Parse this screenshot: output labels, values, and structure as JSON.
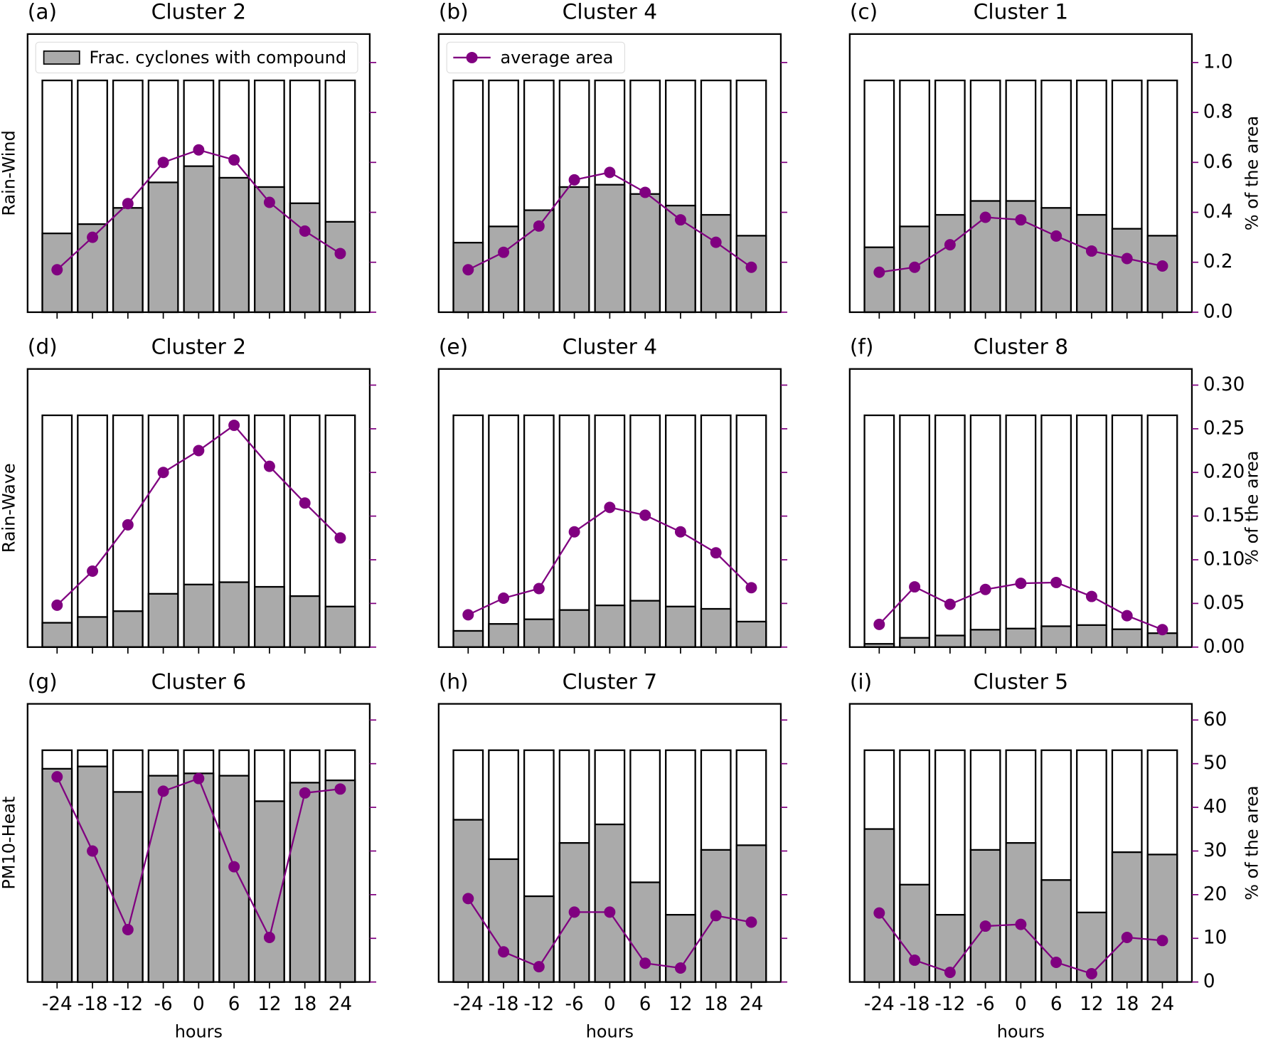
{
  "chart_data": [
    {
      "type": "bar_line",
      "panel_label": "(a)",
      "title": "Cluster 2",
      "row_label": "Rain-Wind",
      "x": [
        -24,
        -18,
        -12,
        -6,
        0,
        6,
        12,
        18,
        24
      ],
      "xlim": [
        -29,
        29
      ],
      "xticks": [
        -24,
        -18,
        -12,
        -6,
        0,
        6,
        12,
        18,
        24
      ],
      "show_xtick_labels": false,
      "ylim": [
        0,
        1.2
      ],
      "y2lim": [
        0,
        1.114
      ],
      "y2ticks": [
        {
          "value": 0,
          "label": "0.0"
        },
        0.2,
        0.4,
        0.6,
        0.8,
        {
          "value": 1,
          "label": "1.0"
        }
      ],
      "show_y2tick_labels": false,
      "legend": "upper left",
      "series": [
        {
          "name": "Frac. cyclones with compound",
          "color": "#aaaaaa",
          "total": 1,
          "bar_width": 5,
          "values": [
            0.34,
            0.38,
            0.45,
            0.56,
            0.63,
            0.58,
            0.54,
            0.47,
            0.39
          ]
        },
        {
          "color": "#800080",
          "axis": "y2",
          "values": [
            0.17,
            0.3,
            0.435,
            0.6,
            0.65,
            0.61,
            0.44,
            0.325,
            0.235
          ]
        }
      ]
    },
    {
      "type": "bar_line",
      "panel_label": "(b)",
      "title": "Cluster 4",
      "x": [
        -24,
        -18,
        -12,
        -6,
        0,
        6,
        12,
        18,
        24
      ],
      "xlim": [
        -29,
        29
      ],
      "xticks": [
        -24,
        -18,
        -12,
        -6,
        0,
        6,
        12,
        18,
        24
      ],
      "show_xtick_labels": false,
      "ylim": [
        0,
        1.2
      ],
      "y2lim": [
        0,
        1.114
      ],
      "y2ticks": [
        {
          "value": 0,
          "label": "0.0"
        },
        0.2,
        0.4,
        0.6,
        0.8,
        {
          "value": 1,
          "label": "1.0"
        }
      ],
      "show_y2tick_labels": false,
      "legend": "upper left",
      "series": [
        {
          "color": "#aaaaaa",
          "total": 1,
          "bar_width": 5,
          "values": [
            0.3,
            0.37,
            0.44,
            0.54,
            0.55,
            0.51,
            0.46,
            0.42,
            0.33
          ]
        },
        {
          "name": "average area",
          "color": "#800080",
          "axis": "y2",
          "values": [
            0.17,
            0.24,
            0.345,
            0.53,
            0.56,
            0.48,
            0.37,
            0.28,
            0.18
          ]
        }
      ]
    },
    {
      "type": "bar_line",
      "panel_label": "(c)",
      "title": "Cluster 1",
      "x": [
        -24,
        -18,
        -12,
        -6,
        0,
        6,
        12,
        18,
        24
      ],
      "xlim": [
        -29,
        29
      ],
      "xticks": [
        -24,
        -18,
        -12,
        -6,
        0,
        6,
        12,
        18,
        24
      ],
      "show_xtick_labels": false,
      "ylim": [
        0,
        1.2
      ],
      "y2lim": [
        0,
        1.114
      ],
      "y2ticks": [
        {
          "value": 0,
          "label": "0.0"
        },
        0.2,
        0.4,
        0.6,
        0.8,
        {
          "value": 1,
          "label": "1.0"
        }
      ],
      "show_y2tick_labels": true,
      "y2label": "% of the area",
      "series": [
        {
          "color": "#aaaaaa",
          "total": 1,
          "bar_width": 5,
          "values": [
            0.28,
            0.37,
            0.42,
            0.48,
            0.48,
            0.45,
            0.42,
            0.36,
            0.33
          ]
        },
        {
          "color": "#800080",
          "axis": "y2",
          "values": [
            0.16,
            0.18,
            0.27,
            0.38,
            0.37,
            0.305,
            0.245,
            0.215,
            0.185
          ]
        }
      ]
    },
    {
      "type": "bar_line",
      "panel_label": "(d)",
      "title": "Cluster 2",
      "row_label": "Rain-Wave",
      "x": [
        -24,
        -18,
        -12,
        -6,
        0,
        6,
        12,
        18,
        24
      ],
      "xlim": [
        -29,
        29
      ],
      "xticks": [
        -24,
        -18,
        -12,
        -6,
        0,
        6,
        12,
        18,
        24
      ],
      "show_xtick_labels": false,
      "ylim": [
        0,
        1.2
      ],
      "y2lim": [
        0,
        0.3185
      ],
      "y2ticks": [
        {
          "value": 0,
          "label": "0.00"
        },
        0.05,
        {
          "value": 0.1,
          "label": "0.10"
        },
        0.15,
        {
          "value": 0.2,
          "label": "0.20"
        },
        0.25,
        {
          "value": 0.3,
          "label": "0.30"
        }
      ],
      "show_y2tick_labels": false,
      "series": [
        {
          "color": "#aaaaaa",
          "total": 1,
          "bar_width": 5,
          "values": [
            0.105,
            0.13,
            0.155,
            0.23,
            0.27,
            0.28,
            0.26,
            0.22,
            0.175
          ]
        },
        {
          "color": "#800080",
          "axis": "y2",
          "values": [
            0.048,
            0.087,
            0.14,
            0.2,
            0.225,
            0.254,
            0.207,
            0.165,
            0.125
          ]
        }
      ]
    },
    {
      "type": "bar_line",
      "panel_label": "(e)",
      "title": "Cluster 4",
      "x": [
        -24,
        -18,
        -12,
        -6,
        0,
        6,
        12,
        18,
        24
      ],
      "xlim": [
        -29,
        29
      ],
      "xticks": [
        -24,
        -18,
        -12,
        -6,
        0,
        6,
        12,
        18,
        24
      ],
      "show_xtick_labels": false,
      "ylim": [
        0,
        1.2
      ],
      "y2lim": [
        0,
        0.3185
      ],
      "y2ticks": [
        {
          "value": 0,
          "label": "0.00"
        },
        0.05,
        {
          "value": 0.1,
          "label": "0.10"
        },
        0.15,
        {
          "value": 0.2,
          "label": "0.20"
        },
        0.25,
        {
          "value": 0.3,
          "label": "0.30"
        }
      ],
      "show_y2tick_labels": false,
      "series": [
        {
          "color": "#aaaaaa",
          "total": 1,
          "bar_width": 5,
          "values": [
            0.07,
            0.1,
            0.12,
            0.16,
            0.18,
            0.2,
            0.175,
            0.165,
            0.11
          ]
        },
        {
          "color": "#800080",
          "axis": "y2",
          "values": [
            0.037,
            0.056,
            0.067,
            0.132,
            0.16,
            0.151,
            0.132,
            0.108,
            0.068
          ]
        }
      ]
    },
    {
      "type": "bar_line",
      "panel_label": "(f)",
      "title": "Cluster 8",
      "x": [
        -24,
        -18,
        -12,
        -6,
        0,
        6,
        12,
        18,
        24
      ],
      "xlim": [
        -29,
        29
      ],
      "xticks": [
        -24,
        -18,
        -12,
        -6,
        0,
        6,
        12,
        18,
        24
      ],
      "show_xtick_labels": false,
      "ylim": [
        0,
        1.2
      ],
      "y2lim": [
        0,
        0.3185
      ],
      "y2ticks": [
        {
          "value": 0,
          "label": "0.00"
        },
        0.05,
        {
          "value": 0.1,
          "label": "0.10"
        },
        0.15,
        {
          "value": 0.2,
          "label": "0.20"
        },
        0.25,
        {
          "value": 0.3,
          "label": "0.30"
        }
      ],
      "show_y2tick_labels": true,
      "y2label": "% of the area",
      "series": [
        {
          "color": "#aaaaaa",
          "total": 1,
          "bar_width": 5,
          "values": [
            0.014,
            0.04,
            0.05,
            0.075,
            0.08,
            0.09,
            0.095,
            0.077,
            0.06
          ]
        },
        {
          "color": "#800080",
          "axis": "y2",
          "values": [
            0.026,
            0.069,
            0.049,
            0.066,
            0.073,
            0.074,
            0.058,
            0.036,
            0.02
          ]
        }
      ]
    },
    {
      "type": "bar_line",
      "panel_label": "(g)",
      "title": "Cluster 6",
      "row_label": "PM10-Heat",
      "x": [
        -24,
        -18,
        -12,
        -6,
        0,
        6,
        12,
        18,
        24
      ],
      "xlim": [
        -29,
        29
      ],
      "xticks": [
        -24,
        -18,
        -12,
        -6,
        0,
        6,
        12,
        18,
        24
      ],
      "show_xtick_labels": true,
      "xlabel": "hours",
      "ylim": [
        0,
        1.2
      ],
      "y2lim": [
        0,
        63.7
      ],
      "y2ticks": [
        0,
        10,
        20,
        30,
        40,
        50,
        60
      ],
      "show_y2tick_labels": false,
      "series": [
        {
          "color": "#aaaaaa",
          "total": 1,
          "bar_width": 5,
          "values": [
            0.92,
            0.93,
            0.82,
            0.89,
            0.9,
            0.89,
            0.78,
            0.86,
            0.87
          ]
        },
        {
          "color": "#800080",
          "axis": "y2",
          "values": [
            47,
            30,
            12,
            43.7,
            46.6,
            26.4,
            10.2,
            43.3,
            44.2
          ]
        }
      ]
    },
    {
      "type": "bar_line",
      "panel_label": "(h)",
      "title": "Cluster 7",
      "x": [
        -24,
        -18,
        -12,
        -6,
        0,
        6,
        12,
        18,
        24
      ],
      "xlim": [
        -29,
        29
      ],
      "xticks": [
        -24,
        -18,
        -12,
        -6,
        0,
        6,
        12,
        18,
        24
      ],
      "show_xtick_labels": true,
      "xlabel": "hours",
      "ylim": [
        0,
        1.2
      ],
      "y2lim": [
        0,
        63.7
      ],
      "y2ticks": [
        0,
        10,
        20,
        30,
        40,
        50,
        60
      ],
      "show_y2tick_labels": false,
      "series": [
        {
          "color": "#aaaaaa",
          "total": 1,
          "bar_width": 5,
          "values": [
            0.7,
            0.53,
            0.37,
            0.6,
            0.68,
            0.43,
            0.29,
            0.57,
            0.59
          ]
        },
        {
          "color": "#800080",
          "axis": "y2",
          "values": [
            19.1,
            6.9,
            3.5,
            16,
            16,
            4.3,
            3.2,
            15.2,
            13.7
          ]
        }
      ]
    },
    {
      "type": "bar_line",
      "panel_label": "(i)",
      "title": "Cluster 5",
      "x": [
        -24,
        -18,
        -12,
        -6,
        0,
        6,
        12,
        18,
        24
      ],
      "xlim": [
        -29,
        29
      ],
      "xticks": [
        -24,
        -18,
        -12,
        -6,
        0,
        6,
        12,
        18,
        24
      ],
      "show_xtick_labels": true,
      "xlabel": "hours",
      "ylim": [
        0,
        1.2
      ],
      "y2lim": [
        0,
        63.7
      ],
      "y2ticks": [
        0,
        10,
        20,
        30,
        40,
        50,
        60
      ],
      "show_y2tick_labels": true,
      "y2label": "% of the area",
      "series": [
        {
          "color": "#aaaaaa",
          "total": 1,
          "bar_width": 5,
          "values": [
            0.66,
            0.42,
            0.29,
            0.57,
            0.6,
            0.44,
            0.3,
            0.56,
            0.55
          ]
        },
        {
          "color": "#800080",
          "axis": "y2",
          "values": [
            15.8,
            5,
            2.2,
            12.8,
            13.2,
            4.5,
            1.9,
            10.2,
            9.5
          ]
        }
      ]
    }
  ]
}
